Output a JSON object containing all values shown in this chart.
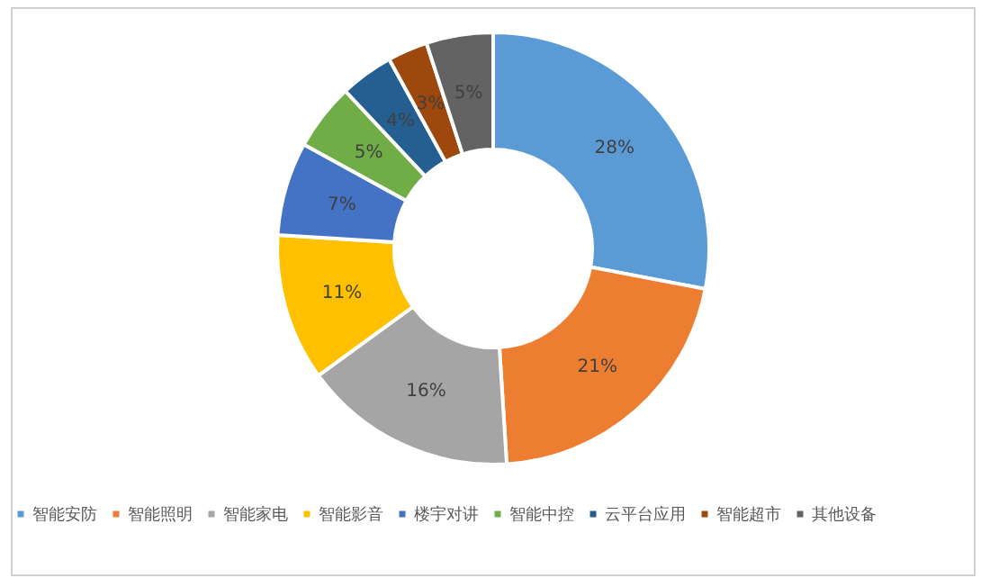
{
  "chart_data": {
    "type": "donut",
    "categories": [
      "智能安防",
      "智能照明",
      "智能家电",
      "智能影音",
      "楼宇对讲",
      "智能中控",
      "云平台应用",
      "智能超市",
      "其他设备"
    ],
    "values": [
      28,
      21,
      16,
      11,
      7,
      5,
      4,
      3,
      5
    ],
    "colors": [
      "#5b9bd5",
      "#ed7d31",
      "#a5a5a5",
      "#ffc000",
      "#4472c4",
      "#70ad47",
      "#255e91",
      "#9e480e",
      "#636363"
    ],
    "value_labels": [
      "28%",
      "21%",
      "16%",
      "11%",
      "7%",
      "5%",
      "4%",
      "3%",
      "5%"
    ],
    "legend": "bottom"
  }
}
